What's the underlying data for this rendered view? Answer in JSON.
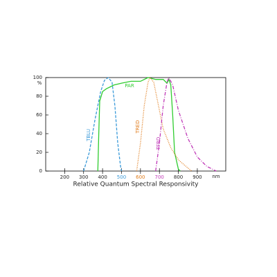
{
  "chart_data": {
    "type": "line",
    "title": "Relative Quantum Spectral Responsivity",
    "y_label": "%",
    "x_unit": "nm",
    "xlim": [
      100,
      1050
    ],
    "xticks": [
      200,
      300,
      400,
      500,
      600,
      700,
      800,
      900
    ],
    "xtick_label_colors": [
      "#222",
      "#222",
      "#222",
      "#3a9ad9",
      "#e07b1a",
      "#c03ab8",
      "#222",
      "#222"
    ],
    "ylim": [
      0,
      100
    ],
    "yticks": [
      0,
      20,
      40,
      60,
      80,
      100
    ],
    "series": [
      {
        "name": "TBLU",
        "color": "#3a9ad9",
        "dash": "4,2",
        "x": [
          300,
          330,
          360,
          390,
          410,
          430,
          450,
          465,
          480,
          495,
          500
        ],
        "values": [
          0,
          20,
          55,
          85,
          97,
          100,
          95,
          70,
          30,
          5,
          0
        ]
      },
      {
        "name": "PAR",
        "color": "#2ecc2e",
        "dash": "none",
        "x": [
          375,
          380,
          385,
          400,
          420,
          440,
          460,
          500,
          550,
          600,
          640,
          680,
          720,
          740,
          750,
          760,
          770,
          780,
          800,
          810
        ],
        "values": [
          0,
          40,
          75,
          85,
          88,
          90,
          92,
          94,
          96,
          96,
          100,
          98,
          98,
          94,
          98,
          92,
          60,
          20,
          2,
          0
        ]
      },
      {
        "name": "TRED",
        "color": "#e07b1a",
        "dash": "1,1.5",
        "x": [
          580,
          600,
          620,
          640,
          650,
          670,
          690,
          720,
          760,
          800,
          840,
          870
        ],
        "values": [
          0,
          30,
          70,
          95,
          100,
          95,
          75,
          45,
          25,
          12,
          5,
          0
        ]
      },
      {
        "name": "TFRD",
        "color": "#c03ab8",
        "dash": "5,2,1,2",
        "x": [
          680,
          700,
          720,
          740,
          750,
          770,
          800,
          850,
          900,
          950,
          1000
        ],
        "values": [
          0,
          30,
          70,
          95,
          100,
          92,
          65,
          35,
          15,
          5,
          0
        ]
      }
    ]
  }
}
